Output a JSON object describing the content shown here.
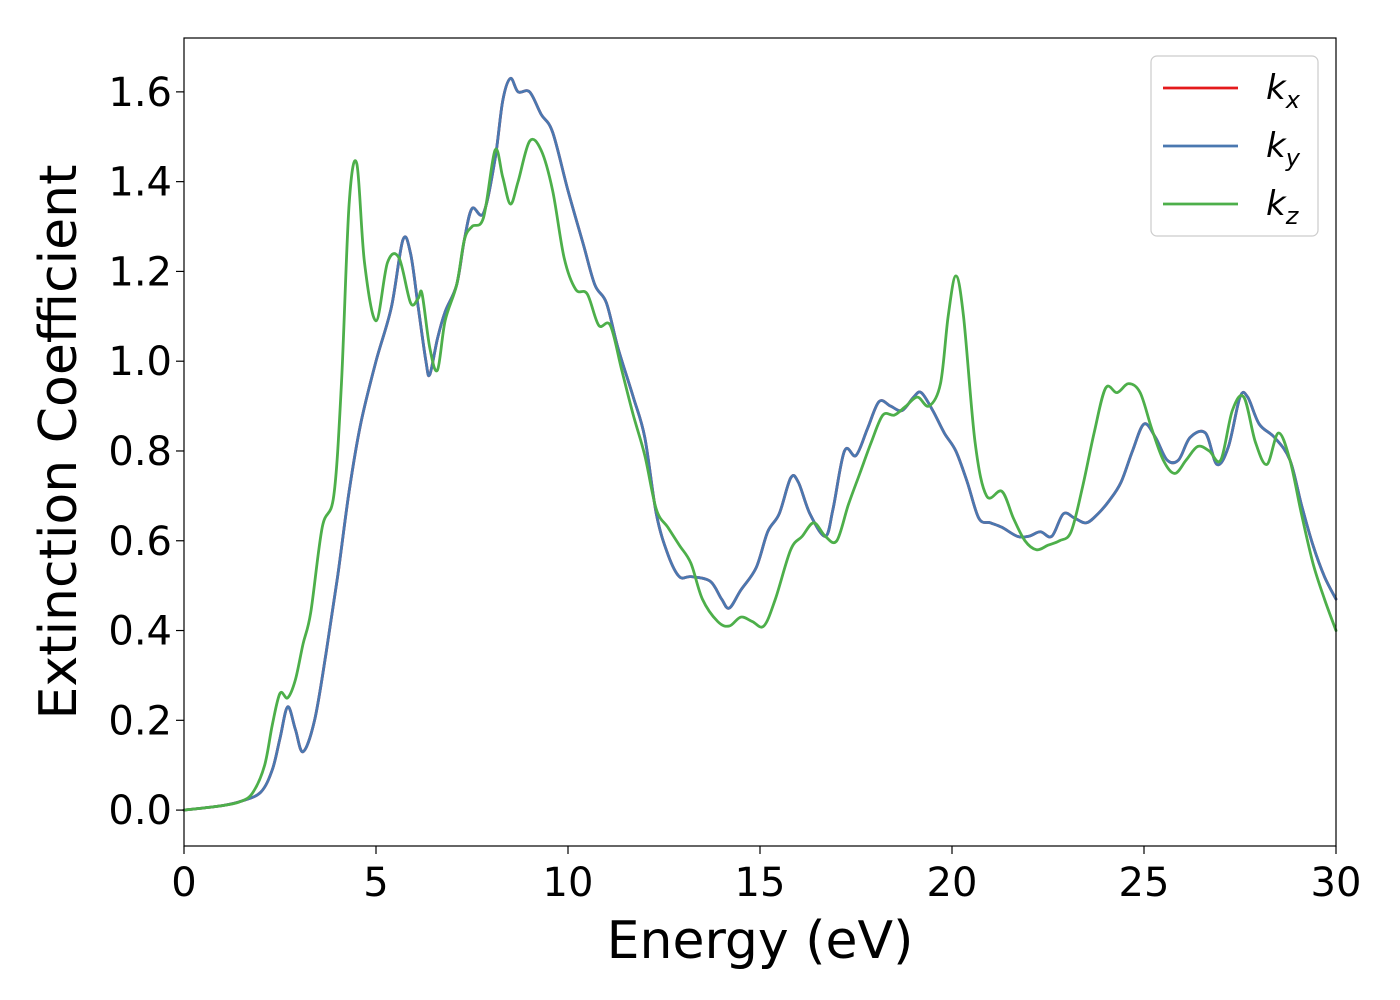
{
  "chart_data": {
    "type": "line",
    "title": "",
    "xlabel": "Energy (eV)",
    "ylabel": "Extinction Coefficient",
    "xlim": [
      0,
      30
    ],
    "ylim": [
      -0.08,
      1.72
    ],
    "xticks": [
      0,
      5,
      10,
      15,
      20,
      25,
      30
    ],
    "xtick_labels": [
      "0",
      "5",
      "10",
      "15",
      "20",
      "25",
      "30"
    ],
    "yticks": [
      0.0,
      0.2,
      0.4,
      0.6,
      0.8,
      1.0,
      1.2,
      1.4,
      1.6
    ],
    "ytick_labels": [
      "0.0",
      "0.2",
      "0.4",
      "0.6",
      "0.8",
      "1.0",
      "1.2",
      "1.4",
      "1.6"
    ],
    "grid": false,
    "legend_position": "top-right",
    "series": [
      {
        "name": "k",
        "subscript": "x",
        "color": "#e41a1c",
        "points": [
          [
            0,
            0.0
          ],
          [
            1,
            0.01
          ],
          [
            1.5,
            0.02
          ],
          [
            2,
            0.04
          ],
          [
            2.3,
            0.09
          ],
          [
            2.5,
            0.16
          ],
          [
            2.7,
            0.23
          ],
          [
            2.9,
            0.18
          ],
          [
            3.1,
            0.13
          ],
          [
            3.4,
            0.2
          ],
          [
            3.7,
            0.35
          ],
          [
            4.0,
            0.52
          ],
          [
            4.3,
            0.71
          ],
          [
            4.6,
            0.86
          ],
          [
            5.0,
            1.0
          ],
          [
            5.4,
            1.12
          ],
          [
            5.7,
            1.27
          ],
          [
            5.9,
            1.24
          ],
          [
            6.1,
            1.12
          ],
          [
            6.3,
            1.0
          ],
          [
            6.4,
            0.97
          ],
          [
            6.6,
            1.05
          ],
          [
            6.8,
            1.11
          ],
          [
            7.1,
            1.17
          ],
          [
            7.3,
            1.27
          ],
          [
            7.5,
            1.34
          ],
          [
            7.8,
            1.33
          ],
          [
            8.1,
            1.45
          ],
          [
            8.3,
            1.58
          ],
          [
            8.5,
            1.63
          ],
          [
            8.7,
            1.6
          ],
          [
            9.0,
            1.6
          ],
          [
            9.3,
            1.55
          ],
          [
            9.6,
            1.51
          ],
          [
            10.0,
            1.38
          ],
          [
            10.4,
            1.26
          ],
          [
            10.7,
            1.17
          ],
          [
            11.0,
            1.13
          ],
          [
            11.3,
            1.03
          ],
          [
            11.7,
            0.92
          ],
          [
            12.0,
            0.83
          ],
          [
            12.3,
            0.66
          ],
          [
            12.6,
            0.57
          ],
          [
            12.9,
            0.52
          ],
          [
            13.2,
            0.52
          ],
          [
            13.7,
            0.51
          ],
          [
            14.0,
            0.47
          ],
          [
            14.2,
            0.45
          ],
          [
            14.5,
            0.49
          ],
          [
            14.9,
            0.54
          ],
          [
            15.2,
            0.62
          ],
          [
            15.5,
            0.66
          ],
          [
            15.8,
            0.74
          ],
          [
            16.0,
            0.73
          ],
          [
            16.3,
            0.66
          ],
          [
            16.7,
            0.61
          ],
          [
            16.9,
            0.67
          ],
          [
            17.2,
            0.8
          ],
          [
            17.5,
            0.79
          ],
          [
            17.8,
            0.85
          ],
          [
            18.1,
            0.91
          ],
          [
            18.4,
            0.9
          ],
          [
            18.7,
            0.89
          ],
          [
            19.0,
            0.92
          ],
          [
            19.2,
            0.93
          ],
          [
            19.5,
            0.89
          ],
          [
            19.8,
            0.84
          ],
          [
            20.1,
            0.8
          ],
          [
            20.4,
            0.73
          ],
          [
            20.7,
            0.65
          ],
          [
            21.0,
            0.64
          ],
          [
            21.3,
            0.63
          ],
          [
            21.7,
            0.61
          ],
          [
            22.0,
            0.61
          ],
          [
            22.3,
            0.62
          ],
          [
            22.6,
            0.61
          ],
          [
            22.9,
            0.66
          ],
          [
            23.2,
            0.65
          ],
          [
            23.5,
            0.64
          ],
          [
            23.8,
            0.66
          ],
          [
            24.1,
            0.69
          ],
          [
            24.4,
            0.73
          ],
          [
            24.7,
            0.8
          ],
          [
            25.0,
            0.86
          ],
          [
            25.3,
            0.83
          ],
          [
            25.6,
            0.78
          ],
          [
            25.9,
            0.78
          ],
          [
            26.2,
            0.83
          ],
          [
            26.6,
            0.84
          ],
          [
            26.9,
            0.77
          ],
          [
            27.2,
            0.81
          ],
          [
            27.5,
            0.92
          ],
          [
            27.7,
            0.92
          ],
          [
            28.0,
            0.86
          ],
          [
            28.4,
            0.83
          ],
          [
            28.8,
            0.78
          ],
          [
            29.1,
            0.68
          ],
          [
            29.4,
            0.59
          ],
          [
            29.7,
            0.52
          ],
          [
            30.0,
            0.47
          ]
        ]
      },
      {
        "name": "k",
        "subscript": "y",
        "color": "#4a78b0",
        "points": [
          [
            0,
            0.0
          ],
          [
            1,
            0.01
          ],
          [
            1.5,
            0.02
          ],
          [
            2,
            0.04
          ],
          [
            2.3,
            0.09
          ],
          [
            2.5,
            0.16
          ],
          [
            2.7,
            0.23
          ],
          [
            2.9,
            0.18
          ],
          [
            3.1,
            0.13
          ],
          [
            3.4,
            0.2
          ],
          [
            3.7,
            0.35
          ],
          [
            4.0,
            0.52
          ],
          [
            4.3,
            0.71
          ],
          [
            4.6,
            0.86
          ],
          [
            5.0,
            1.0
          ],
          [
            5.4,
            1.12
          ],
          [
            5.7,
            1.27
          ],
          [
            5.9,
            1.24
          ],
          [
            6.1,
            1.12
          ],
          [
            6.3,
            1.0
          ],
          [
            6.4,
            0.97
          ],
          [
            6.6,
            1.05
          ],
          [
            6.8,
            1.11
          ],
          [
            7.1,
            1.17
          ],
          [
            7.3,
            1.27
          ],
          [
            7.5,
            1.34
          ],
          [
            7.8,
            1.33
          ],
          [
            8.1,
            1.45
          ],
          [
            8.3,
            1.58
          ],
          [
            8.5,
            1.63
          ],
          [
            8.7,
            1.6
          ],
          [
            9.0,
            1.6
          ],
          [
            9.3,
            1.55
          ],
          [
            9.6,
            1.51
          ],
          [
            10.0,
            1.38
          ],
          [
            10.4,
            1.26
          ],
          [
            10.7,
            1.17
          ],
          [
            11.0,
            1.13
          ],
          [
            11.3,
            1.03
          ],
          [
            11.7,
            0.92
          ],
          [
            12.0,
            0.83
          ],
          [
            12.3,
            0.66
          ],
          [
            12.6,
            0.57
          ],
          [
            12.9,
            0.52
          ],
          [
            13.2,
            0.52
          ],
          [
            13.7,
            0.51
          ],
          [
            14.0,
            0.47
          ],
          [
            14.2,
            0.45
          ],
          [
            14.5,
            0.49
          ],
          [
            14.9,
            0.54
          ],
          [
            15.2,
            0.62
          ],
          [
            15.5,
            0.66
          ],
          [
            15.8,
            0.74
          ],
          [
            16.0,
            0.73
          ],
          [
            16.3,
            0.66
          ],
          [
            16.7,
            0.61
          ],
          [
            16.9,
            0.67
          ],
          [
            17.2,
            0.8
          ],
          [
            17.5,
            0.79
          ],
          [
            17.8,
            0.85
          ],
          [
            18.1,
            0.91
          ],
          [
            18.4,
            0.9
          ],
          [
            18.7,
            0.89
          ],
          [
            19.0,
            0.92
          ],
          [
            19.2,
            0.93
          ],
          [
            19.5,
            0.89
          ],
          [
            19.8,
            0.84
          ],
          [
            20.1,
            0.8
          ],
          [
            20.4,
            0.73
          ],
          [
            20.7,
            0.65
          ],
          [
            21.0,
            0.64
          ],
          [
            21.3,
            0.63
          ],
          [
            21.7,
            0.61
          ],
          [
            22.0,
            0.61
          ],
          [
            22.3,
            0.62
          ],
          [
            22.6,
            0.61
          ],
          [
            22.9,
            0.66
          ],
          [
            23.2,
            0.65
          ],
          [
            23.5,
            0.64
          ],
          [
            23.8,
            0.66
          ],
          [
            24.1,
            0.69
          ],
          [
            24.4,
            0.73
          ],
          [
            24.7,
            0.8
          ],
          [
            25.0,
            0.86
          ],
          [
            25.3,
            0.83
          ],
          [
            25.6,
            0.78
          ],
          [
            25.9,
            0.78
          ],
          [
            26.2,
            0.83
          ],
          [
            26.6,
            0.84
          ],
          [
            26.9,
            0.77
          ],
          [
            27.2,
            0.81
          ],
          [
            27.5,
            0.92
          ],
          [
            27.7,
            0.92
          ],
          [
            28.0,
            0.86
          ],
          [
            28.4,
            0.83
          ],
          [
            28.8,
            0.78
          ],
          [
            29.1,
            0.68
          ],
          [
            29.4,
            0.59
          ],
          [
            29.7,
            0.52
          ],
          [
            30.0,
            0.47
          ]
        ]
      },
      {
        "name": "k",
        "subscript": "z",
        "color": "#4daf4a",
        "points": [
          [
            0,
            0.0
          ],
          [
            1,
            0.01
          ],
          [
            1.5,
            0.02
          ],
          [
            1.8,
            0.04
          ],
          [
            2.1,
            0.1
          ],
          [
            2.3,
            0.19
          ],
          [
            2.5,
            0.26
          ],
          [
            2.7,
            0.25
          ],
          [
            2.9,
            0.29
          ],
          [
            3.1,
            0.37
          ],
          [
            3.3,
            0.44
          ],
          [
            3.6,
            0.63
          ],
          [
            3.9,
            0.7
          ],
          [
            4.1,
            0.95
          ],
          [
            4.3,
            1.35
          ],
          [
            4.5,
            1.44
          ],
          [
            4.7,
            1.22
          ],
          [
            5.0,
            1.09
          ],
          [
            5.3,
            1.22
          ],
          [
            5.6,
            1.23
          ],
          [
            5.9,
            1.13
          ],
          [
            6.1,
            1.14
          ],
          [
            6.2,
            1.15
          ],
          [
            6.4,
            1.03
          ],
          [
            6.6,
            0.98
          ],
          [
            6.8,
            1.09
          ],
          [
            7.1,
            1.17
          ],
          [
            7.3,
            1.27
          ],
          [
            7.5,
            1.3
          ],
          [
            7.8,
            1.32
          ],
          [
            8.1,
            1.47
          ],
          [
            8.3,
            1.41
          ],
          [
            8.5,
            1.35
          ],
          [
            8.7,
            1.4
          ],
          [
            9.0,
            1.49
          ],
          [
            9.3,
            1.47
          ],
          [
            9.6,
            1.38
          ],
          [
            9.9,
            1.23
          ],
          [
            10.2,
            1.16
          ],
          [
            10.5,
            1.15
          ],
          [
            10.8,
            1.08
          ],
          [
            11.1,
            1.08
          ],
          [
            11.4,
            0.98
          ],
          [
            11.7,
            0.88
          ],
          [
            12.0,
            0.79
          ],
          [
            12.3,
            0.67
          ],
          [
            12.6,
            0.63
          ],
          [
            12.9,
            0.59
          ],
          [
            13.2,
            0.55
          ],
          [
            13.5,
            0.47
          ],
          [
            13.9,
            0.42
          ],
          [
            14.2,
            0.41
          ],
          [
            14.5,
            0.43
          ],
          [
            14.8,
            0.42
          ],
          [
            15.1,
            0.41
          ],
          [
            15.4,
            0.47
          ],
          [
            15.8,
            0.58
          ],
          [
            16.1,
            0.61
          ],
          [
            16.4,
            0.64
          ],
          [
            16.7,
            0.61
          ],
          [
            17.0,
            0.6
          ],
          [
            17.3,
            0.68
          ],
          [
            17.6,
            0.75
          ],
          [
            17.9,
            0.82
          ],
          [
            18.2,
            0.88
          ],
          [
            18.5,
            0.88
          ],
          [
            18.8,
            0.9
          ],
          [
            19.1,
            0.92
          ],
          [
            19.4,
            0.9
          ],
          [
            19.7,
            0.95
          ],
          [
            19.9,
            1.1
          ],
          [
            20.1,
            1.19
          ],
          [
            20.3,
            1.1
          ],
          [
            20.6,
            0.82
          ],
          [
            20.9,
            0.7
          ],
          [
            21.3,
            0.71
          ],
          [
            21.6,
            0.65
          ],
          [
            21.9,
            0.6
          ],
          [
            22.2,
            0.58
          ],
          [
            22.5,
            0.59
          ],
          [
            22.8,
            0.6
          ],
          [
            23.1,
            0.62
          ],
          [
            23.4,
            0.72
          ],
          [
            23.7,
            0.84
          ],
          [
            24.0,
            0.94
          ],
          [
            24.3,
            0.93
          ],
          [
            24.6,
            0.95
          ],
          [
            24.9,
            0.93
          ],
          [
            25.2,
            0.85
          ],
          [
            25.5,
            0.78
          ],
          [
            25.8,
            0.75
          ],
          [
            26.1,
            0.78
          ],
          [
            26.4,
            0.81
          ],
          [
            26.7,
            0.8
          ],
          [
            27.0,
            0.78
          ],
          [
            27.3,
            0.89
          ],
          [
            27.6,
            0.92
          ],
          [
            27.9,
            0.82
          ],
          [
            28.2,
            0.77
          ],
          [
            28.5,
            0.84
          ],
          [
            28.8,
            0.78
          ],
          [
            29.1,
            0.66
          ],
          [
            29.4,
            0.55
          ],
          [
            29.7,
            0.47
          ],
          [
            30.0,
            0.4
          ]
        ]
      }
    ]
  }
}
